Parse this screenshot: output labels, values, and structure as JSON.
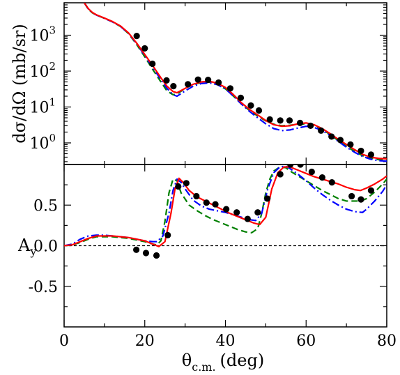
{
  "chart_data": [
    {
      "type": "line",
      "panel": "top",
      "ylabel": "dσ/dΩ (mb/sr)",
      "yscale": "log",
      "xlim": [
        0,
        80
      ],
      "ylim": [
        0.25,
        8000
      ],
      "ytick_labels": [
        {
          "value": 1,
          "base": "10",
          "exp": "0"
        },
        {
          "value": 10,
          "base": "10",
          "exp": "1"
        },
        {
          "value": 100,
          "base": "10",
          "exp": "2"
        },
        {
          "value": 1000,
          "base": "10",
          "exp": "3"
        }
      ],
      "show_xtick_labels": false,
      "series": [
        {
          "style": "solid",
          "color": "#ff0000",
          "x": [
            5.0,
            6.0,
            7.0,
            8.0,
            10.0,
            12.0,
            14.0,
            16.0,
            18.0,
            20.0,
            22.0,
            24.0,
            25.5,
            27.0,
            28.0,
            30.0,
            32.0,
            34.0,
            36.0,
            38.0,
            40.0,
            42.0,
            44.0,
            46.0,
            48.0,
            50.0,
            52.0,
            54.0,
            56.0,
            58.0,
            60.0,
            62.0,
            64.0,
            66.0,
            68.0,
            70.0,
            72.0,
            74.0,
            76.0,
            78.0,
            80.0
          ],
          "y": [
            8000,
            5500,
            4300,
            3700,
            3000,
            2400,
            1800,
            1150,
            600,
            290,
            140,
            65,
            38,
            27,
            25,
            33,
            43,
            50,
            52,
            46,
            35,
            22,
            13,
            8.5,
            6.0,
            4.2,
            3.2,
            2.9,
            3.0,
            3.4,
            3.6,
            3.2,
            2.5,
            1.8,
            1.25,
            0.9,
            0.65,
            0.48,
            0.4,
            0.37,
            0.36
          ]
        },
        {
          "style": "dashed",
          "color": "#008000",
          "x": [
            5.0,
            6.0,
            7.0,
            8.0,
            10.0,
            12.0,
            14.0,
            16.0,
            18.0,
            20.0,
            22.0,
            24.0,
            25.5,
            27.0,
            28.0,
            30.0,
            32.0,
            34.0,
            36.0,
            38.0,
            40.0,
            42.0,
            44.0,
            46.0,
            48.0,
            50.0,
            52.0,
            54.0,
            56.0,
            58.0,
            60.0,
            62.0,
            64.0,
            66.0,
            68.0,
            70.0,
            72.0,
            74.0,
            76.0,
            78.0,
            80.0
          ],
          "y": [
            8000,
            5300,
            4200,
            3650,
            2950,
            2350,
            1750,
            1100,
            550,
            250,
            110,
            50,
            28,
            22,
            23,
            33,
            42,
            48,
            50,
            43,
            32,
            20,
            12,
            8.0,
            5.6,
            4.1,
            3.3,
            3.0,
            3.1,
            3.3,
            3.4,
            3.0,
            2.4,
            1.7,
            1.15,
            0.8,
            0.58,
            0.44,
            0.38,
            0.34,
            0.33
          ]
        },
        {
          "style": "dashdot",
          "color": "#0000ff",
          "x": [
            5.0,
            6.0,
            7.0,
            8.0,
            10.0,
            12.0,
            14.0,
            16.0,
            18.0,
            20.0,
            22.0,
            24.0,
            25.5,
            27.0,
            28.0,
            30.0,
            32.0,
            34.0,
            36.0,
            38.0,
            40.0,
            42.0,
            44.0,
            46.0,
            48.0,
            50.0,
            52.0,
            54.0,
            56.0,
            58.0,
            60.0,
            62.0,
            64.0,
            66.0,
            68.0,
            70.0,
            72.0,
            74.0,
            76.0,
            78.0,
            80.0
          ],
          "y": [
            8000,
            5400,
            4250,
            3650,
            2950,
            2350,
            1750,
            1120,
            580,
            270,
            125,
            58,
            33,
            22,
            20,
            28,
            38,
            45,
            47,
            42,
            32,
            20,
            12,
            7.5,
            5.0,
            3.4,
            2.5,
            2.2,
            2.3,
            2.6,
            2.9,
            2.7,
            2.2,
            1.6,
            1.1,
            0.76,
            0.55,
            0.42,
            0.35,
            0.32,
            0.31
          ]
        }
      ],
      "points": {
        "x": [
          18.0,
          20.0,
          21.9,
          25.4,
          27.1,
          30.7,
          33.2,
          35.7,
          38.3,
          41.2,
          43.8,
          46.3,
          48.3,
          51.0,
          53.6,
          55.9,
          58.5,
          61.1,
          63.7,
          66.3,
          68.5,
          71.0,
          73.6,
          76.1
        ],
        "y": [
          950,
          430,
          160,
          55,
          38,
          43,
          58,
          57,
          48,
          33,
          18,
          11,
          8.0,
          4.5,
          4.2,
          4.2,
          3.6,
          3.0,
          2.2,
          1.5,
          1.2,
          0.9,
          0.6,
          0.47
        ]
      }
    },
    {
      "type": "line",
      "panel": "bottom",
      "ylabel": "A",
      "ylabel_sub": "y",
      "xlabel": "θ",
      "xlabel_sub": "c.m.",
      "xlabel_unit": "(deg)",
      "xlim": [
        0,
        80
      ],
      "ylim": [
        -1.0,
        1.0
      ],
      "xticks": [
        0,
        20,
        40,
        60,
        80
      ],
      "xtick_labels": [
        "0",
        "20",
        "40",
        "60",
        "80"
      ],
      "yticks": [
        -0.5,
        0.0,
        0.5
      ],
      "ytick_labels": [
        "-0.5",
        "0.0",
        "0.5"
      ],
      "reference_line": {
        "y": 0,
        "style": "dashed",
        "color": "#000000"
      },
      "series": [
        {
          "style": "solid",
          "color": "#ff0000",
          "x": [
            0,
            2,
            4,
            6,
            8,
            10,
            12,
            14,
            16,
            18,
            20,
            22,
            23.5,
            25,
            26.5,
            27.5,
            28.5,
            29.5,
            31,
            33,
            35,
            37,
            39,
            41,
            43,
            45,
            47,
            48.5,
            50,
            51.5,
            53,
            54.5,
            56,
            58,
            60,
            62,
            64,
            66,
            68,
            70,
            72,
            73.5,
            75,
            77,
            79,
            80
          ],
          "y": [
            0,
            0.01,
            0.05,
            0.09,
            0.12,
            0.12,
            0.12,
            0.11,
            0.1,
            0.08,
            0.06,
            0.02,
            -0.01,
            0.05,
            0.4,
            0.7,
            0.83,
            0.78,
            0.68,
            0.6,
            0.55,
            0.5,
            0.45,
            0.4,
            0.36,
            0.32,
            0.28,
            0.26,
            0.35,
            0.7,
            0.9,
            0.97,
            0.97,
            0.93,
            0.89,
            0.85,
            0.82,
            0.79,
            0.76,
            0.72,
            0.69,
            0.68,
            0.71,
            0.76,
            0.82,
            0.86
          ]
        },
        {
          "style": "dashed",
          "color": "#008000",
          "x": [
            0,
            2,
            4,
            6,
            8,
            10,
            12,
            14,
            16,
            18,
            20,
            22,
            23,
            24,
            25,
            26,
            27,
            28,
            29,
            31,
            33,
            35,
            37,
            39,
            41,
            43,
            45,
            46.5,
            48,
            49,
            50,
            51,
            52,
            53.5,
            55,
            56,
            58,
            60,
            62,
            64,
            66,
            68,
            70,
            72,
            73.5,
            75,
            77,
            79,
            80
          ],
          "y": [
            0,
            0.01,
            0.04,
            0.08,
            0.11,
            0.11,
            0.11,
            0.1,
            0.09,
            0.07,
            0.05,
            0.02,
            0.01,
            0.06,
            0.3,
            0.65,
            0.82,
            0.8,
            0.65,
            0.5,
            0.43,
            0.37,
            0.32,
            0.28,
            0.24,
            0.2,
            0.17,
            0.16,
            0.21,
            0.4,
            0.65,
            0.82,
            0.92,
            0.97,
            0.96,
            0.92,
            0.86,
            0.8,
            0.74,
            0.68,
            0.63,
            0.58,
            0.55,
            0.55,
            0.55,
            0.58,
            0.66,
            0.76,
            0.82
          ]
        },
        {
          "style": "dashdot",
          "color": "#0000ff",
          "x": [
            0,
            2,
            4,
            6,
            8,
            10,
            12,
            14,
            16,
            18,
            20,
            22,
            23,
            24.5,
            26,
            27,
            28,
            29,
            30,
            32,
            34,
            36,
            38,
            40,
            42,
            44,
            46,
            47.5,
            49,
            50.5,
            52,
            53.5,
            55,
            56,
            58,
            60,
            62,
            64,
            66,
            68,
            70,
            72,
            74,
            75,
            77,
            79,
            80
          ],
          "y": [
            0,
            0.02,
            0.08,
            0.12,
            0.13,
            0.13,
            0.12,
            0.11,
            0.1,
            0.08,
            0.06,
            0.05,
            0.05,
            0.12,
            0.4,
            0.68,
            0.82,
            0.78,
            0.7,
            0.56,
            0.49,
            0.45,
            0.43,
            0.41,
            0.38,
            0.35,
            0.32,
            0.31,
            0.4,
            0.7,
            0.9,
            0.97,
            0.98,
            0.95,
            0.88,
            0.8,
            0.71,
            0.63,
            0.56,
            0.5,
            0.45,
            0.42,
            0.41,
            0.45,
            0.55,
            0.67,
            0.75
          ]
        }
      ],
      "points": {
        "x": [
          17.9,
          20.3,
          22.9,
          25.7,
          28.3,
          30.3,
          32.8,
          35.3,
          37.5,
          40.2,
          42.8,
          45.5,
          48.0,
          50.4,
          53.6,
          56.1,
          58.6,
          61.4,
          64.0,
          66.4,
          71.3,
          73.6,
          76.1
        ],
        "y": [
          -0.05,
          -0.09,
          -0.12,
          0.13,
          0.73,
          0.77,
          0.61,
          0.53,
          0.51,
          0.45,
          0.41,
          0.33,
          0.41,
          0.58,
          0.88,
          1.0,
          1.0,
          0.91,
          0.84,
          0.78,
          0.61,
          0.57,
          0.68
        ]
      }
    }
  ],
  "colors": {
    "frame": "#000000",
    "points": "#000000"
  }
}
